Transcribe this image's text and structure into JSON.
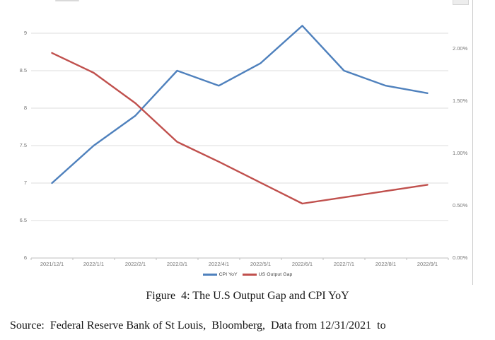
{
  "chart_data": {
    "type": "line",
    "categories": [
      "2021/12/1",
      "2022/1/1",
      "2022/2/1",
      "2022/3/1",
      "2022/4/1",
      "2022/5/1",
      "2022/6/1",
      "2022/7/1",
      "2022/8/1",
      "2022/9/1"
    ],
    "series": [
      {
        "name": "CPI YoY",
        "axis": "left",
        "color": "#4F81BD",
        "values": [
          7.0,
          7.5,
          7.9,
          8.5,
          8.3,
          8.6,
          9.1,
          8.5,
          8.3,
          8.2
        ]
      },
      {
        "name": "US Output Gap",
        "axis": "right",
        "color": "#C0504D",
        "values": [
          1.96,
          1.77,
          1.48,
          1.11,
          0.92,
          0.72,
          0.52,
          0.58,
          0.64,
          0.7
        ]
      }
    ],
    "left_axis": {
      "ticks": [
        "9",
        "8.5",
        "8",
        "7.5",
        "7",
        "6.5",
        "6"
      ],
      "values": [
        9,
        8.5,
        8,
        7.5,
        7,
        6.5,
        6
      ],
      "min": 6,
      "max": 9
    },
    "right_axis": {
      "ticks": [
        "2.00%",
        "1.50%",
        "1.00%",
        "0.50%",
        "0.00%"
      ],
      "values": [
        2.0,
        1.5,
        1.0,
        0.5,
        0.0
      ],
      "min": 0,
      "max": 2.0
    },
    "grid": true,
    "legend_position": "bottom",
    "title": "",
    "xlabel": "",
    "ylabel": ""
  },
  "caption": "Figure  4: The U.S Output Gap and CPI YoY",
  "source": "Source:  Federal Reserve Bank of St Louis,  Bloomberg,  Data from 12/31/2021  to",
  "colors": {
    "cpi_line": "#4F81BD",
    "output_gap_line": "#C0504D",
    "gridline": "#dcdcdc",
    "axis_line": "#bfbfbf",
    "tick_text": "#757575"
  }
}
